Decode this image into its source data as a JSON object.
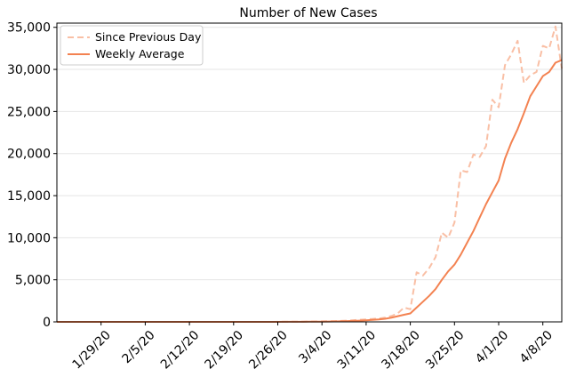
{
  "chart_data": {
    "type": "line",
    "title": "Number of New Cases",
    "xlabel": "",
    "ylabel": "",
    "x_start_date": "1/22/20",
    "x_tick_labels": [
      "1/29/20",
      "2/5/20",
      "2/12/20",
      "2/19/20",
      "2/26/20",
      "3/4/20",
      "3/11/20",
      "3/18/20",
      "3/25/20",
      "4/1/20",
      "4/8/20"
    ],
    "x_tick_days": [
      7,
      14,
      21,
      28,
      35,
      42,
      49,
      56,
      63,
      70,
      77
    ],
    "xlim": [
      0,
      80
    ],
    "y_tick_labels": [
      "0",
      "5,000",
      "10,000",
      "15,000",
      "20,000",
      "25,000",
      "30,000",
      "35,000"
    ],
    "y_tick_values": [
      0,
      5000,
      10000,
      15000,
      20000,
      25000,
      30000,
      35000
    ],
    "ylim": [
      0,
      35500
    ],
    "grid": "horizontal",
    "legend_position": "top-left",
    "series": [
      {
        "name": "Since Previous Day",
        "style": "dashed",
        "color": "#f9bfa5",
        "x": [
          0,
          1,
          2,
          3,
          4,
          5,
          6,
          7,
          8,
          9,
          10,
          11,
          12,
          13,
          14,
          15,
          16,
          17,
          18,
          19,
          20,
          21,
          22,
          23,
          24,
          25,
          26,
          27,
          28,
          29,
          30,
          31,
          32,
          33,
          34,
          35,
          36,
          37,
          38,
          39,
          40,
          41,
          42,
          43,
          44,
          45,
          46,
          47,
          48,
          49,
          50,
          51,
          52,
          53,
          54,
          55,
          56,
          57,
          58,
          59,
          60,
          61,
          62,
          63,
          64,
          65,
          66,
          67,
          68,
          69,
          70,
          71,
          72,
          73,
          74,
          75,
          76,
          77,
          78,
          79,
          80
        ],
        "y": [
          0,
          0,
          0,
          0,
          0,
          0,
          0,
          0,
          0,
          0,
          0,
          0,
          0,
          0,
          0,
          0,
          0,
          0,
          0,
          0,
          0,
          0,
          0,
          0,
          0,
          0,
          0,
          0,
          0,
          0,
          0,
          0,
          0,
          0,
          0,
          10,
          15,
          20,
          25,
          30,
          40,
          50,
          60,
          80,
          100,
          120,
          150,
          200,
          250,
          300,
          350,
          400,
          500,
          700,
          1000,
          1700,
          1500,
          5900,
          5500,
          6400,
          7700,
          10600,
          10000,
          11800,
          18000,
          17800,
          19900,
          19600,
          20900,
          26400,
          25500,
          30500,
          31800,
          33400,
          28400,
          29300,
          29700,
          32800,
          32500,
          35100,
          30100
        ]
      },
      {
        "name": "Weekly Average",
        "style": "solid",
        "color": "#f38251",
        "x": [
          0,
          1,
          2,
          3,
          4,
          5,
          6,
          7,
          8,
          9,
          10,
          11,
          12,
          13,
          14,
          15,
          16,
          17,
          18,
          19,
          20,
          21,
          22,
          23,
          24,
          25,
          26,
          27,
          28,
          29,
          30,
          31,
          32,
          33,
          34,
          35,
          36,
          37,
          38,
          39,
          40,
          41,
          42,
          43,
          44,
          45,
          46,
          47,
          48,
          49,
          50,
          51,
          52,
          53,
          54,
          55,
          56,
          57,
          58,
          59,
          60,
          61,
          62,
          63,
          64,
          65,
          66,
          67,
          68,
          69,
          70,
          71,
          72,
          73,
          74,
          75,
          76,
          77,
          78,
          79,
          80
        ],
        "y": [
          0,
          0,
          0,
          0,
          0,
          0,
          0,
          0,
          0,
          0,
          0,
          0,
          0,
          0,
          0,
          0,
          0,
          0,
          0,
          0,
          0,
          0,
          0,
          0,
          0,
          0,
          0,
          0,
          0,
          0,
          0,
          0,
          0,
          0,
          0,
          5,
          7,
          10,
          12,
          15,
          20,
          25,
          30,
          40,
          50,
          70,
          90,
          120,
          150,
          180,
          230,
          290,
          370,
          500,
          680,
          850,
          1000,
          1700,
          2400,
          3100,
          3900,
          5000,
          6000,
          6800,
          8000,
          9400,
          10800,
          12400,
          14000,
          15400,
          16800,
          19400,
          21300,
          22900,
          24800,
          26800,
          28000,
          29200,
          29700,
          30800,
          31100
        ]
      }
    ]
  }
}
